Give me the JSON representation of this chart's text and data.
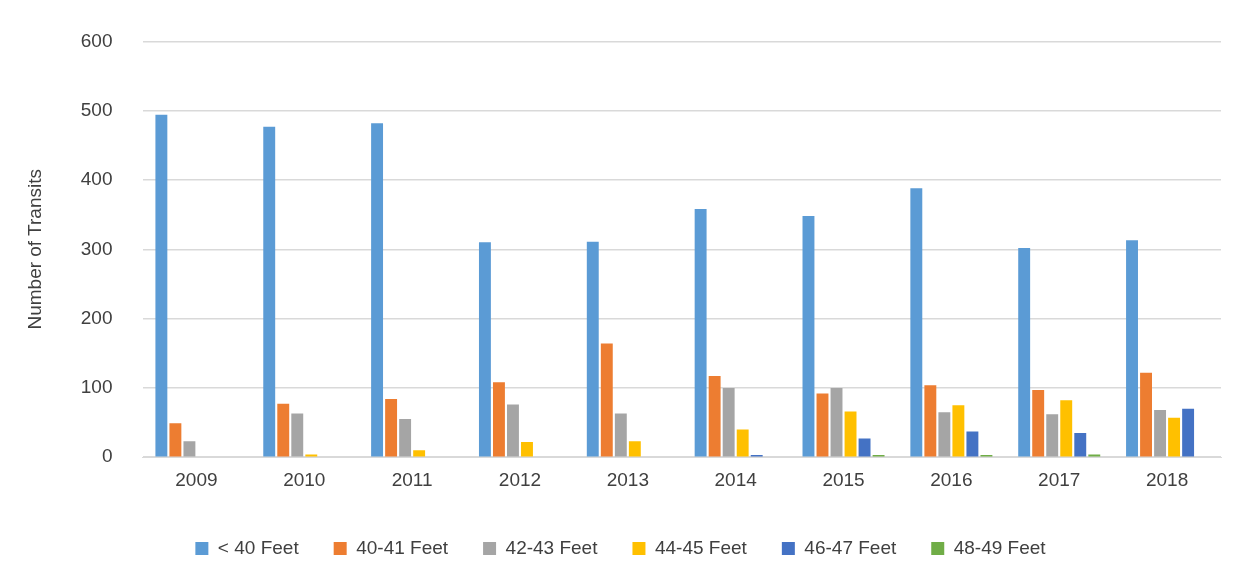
{
  "chart_data": {
    "type": "bar",
    "ylabel": "Number of Transits",
    "categories": [
      "2009",
      "2010",
      "2011",
      "2012",
      "2013",
      "2014",
      "2015",
      "2016",
      "2017",
      "2018"
    ],
    "series": [
      {
        "name": "< 40 Feet",
        "color": "#5b9bd5",
        "values": [
          494,
          477,
          482,
          310,
          311,
          358,
          348,
          388,
          302,
          313
        ]
      },
      {
        "name": "40-41 Feet",
        "color": "#ed7d31",
        "values": [
          49,
          77,
          84,
          108,
          164,
          117,
          92,
          104,
          97,
          122
        ]
      },
      {
        "name": "42-43 Feet",
        "color": "#a5a5a5",
        "values": [
          23,
          63,
          55,
          76,
          63,
          100,
          100,
          65,
          62,
          68
        ]
      },
      {
        "name": "44-45 Feet",
        "color": "#ffc000",
        "values": [
          null,
          4,
          10,
          22,
          23,
          40,
          66,
          75,
          82,
          57
        ]
      },
      {
        "name": "46-47 Feet",
        "color": "#4472c4",
        "values": [
          0,
          0,
          0,
          0,
          0,
          3,
          27,
          37,
          35,
          70
        ]
      },
      {
        "name": "48-49 Feet",
        "color": "#70ad47",
        "values": [
          0,
          0,
          0,
          0,
          0,
          0,
          3,
          3,
          4,
          0
        ]
      }
    ],
    "ylim": [
      0,
      600
    ],
    "yticks": [
      0,
      100,
      200,
      300,
      400,
      500,
      600
    ],
    "grid": "y",
    "legend": "bottom"
  }
}
